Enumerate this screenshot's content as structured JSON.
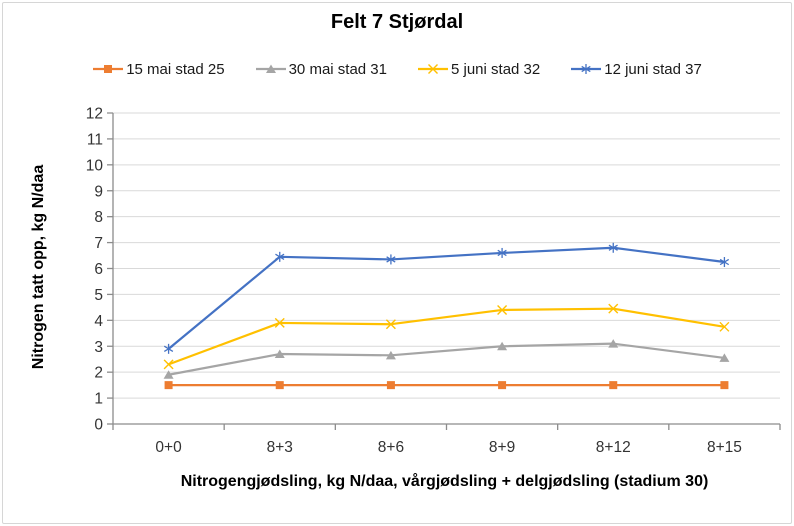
{
  "chart_data": {
    "type": "line",
    "title": "Felt 7 Stjørdal",
    "xlabel": "Nitrogengjødsling, kg N/daa, vårgjødsling + delgjødsling (stadium 30)",
    "ylabel": "Nitrogen tatt opp, kg N/daa",
    "categories": [
      "0+0",
      "8+3",
      "8+6",
      "8+9",
      "8+12",
      "8+15"
    ],
    "series": [
      {
        "name": "15 mai stad 25",
        "marker": "square",
        "color": "#ED7D31",
        "values": [
          1.5,
          1.5,
          1.5,
          1.5,
          1.5,
          1.5
        ]
      },
      {
        "name": "30 mai stad 31",
        "marker": "triangle",
        "color": "#A5A5A5",
        "values": [
          1.9,
          2.7,
          2.65,
          3.0,
          3.1,
          2.55
        ]
      },
      {
        "name": "5 juni stad 32",
        "marker": "x",
        "color": "#FFC000",
        "values": [
          2.3,
          3.9,
          3.85,
          4.4,
          4.45,
          3.75
        ]
      },
      {
        "name": "12 juni stad 37",
        "marker": "asterisk",
        "color": "#4472C4",
        "values": [
          2.9,
          6.45,
          6.35,
          6.6,
          6.8,
          6.25
        ]
      }
    ],
    "ylim": [
      0,
      12
    ],
    "ytick_step": 1,
    "yticks": [
      0,
      1,
      2,
      3,
      4,
      5,
      6,
      7,
      8,
      9,
      10,
      11,
      12
    ],
    "grid": true,
    "legend_position": "top",
    "colors": {
      "gridline": "#D9D9D9",
      "axis": "#8C8C8C",
      "tick_label": "#333333",
      "frame_border": "#D6D6D6"
    }
  }
}
